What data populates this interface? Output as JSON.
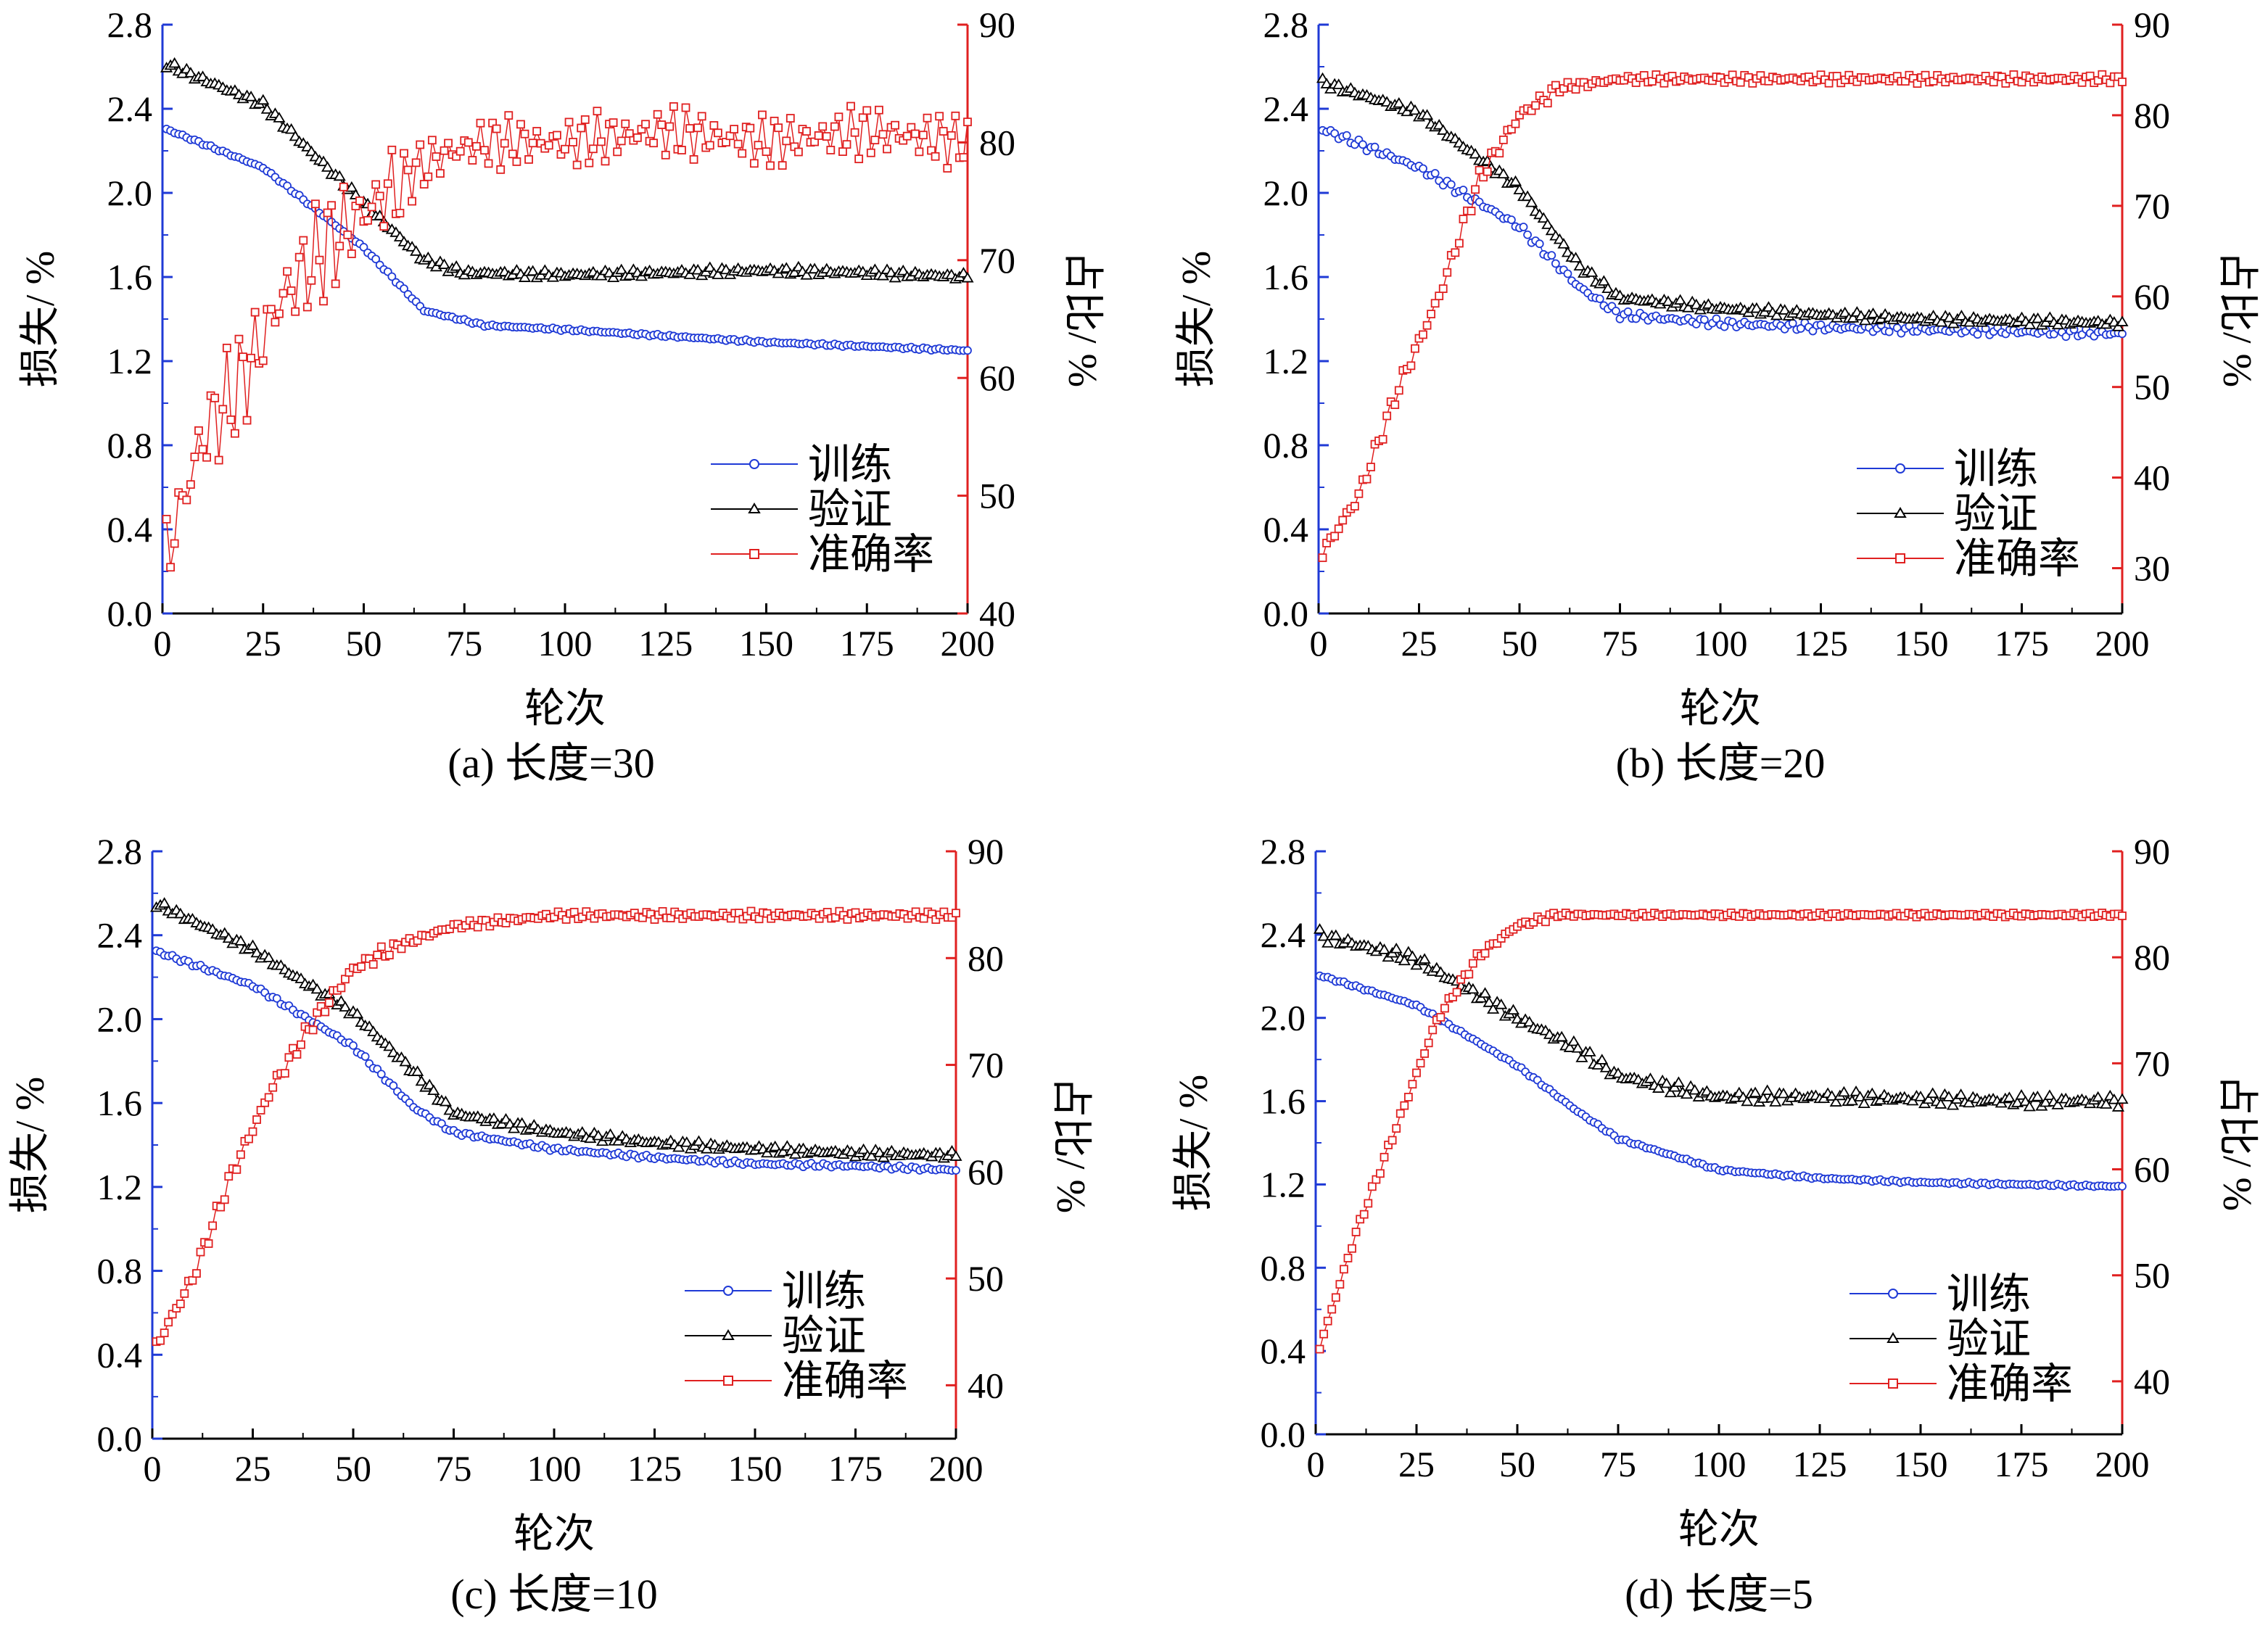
{
  "colors": {
    "train": "#1f3ad6",
    "val": "#000000",
    "acc": "#e02020",
    "left_axis": "#1f3ad6",
    "right_axis": "#e02020",
    "bottom_axis": "#000000"
  },
  "chart_data": [
    {
      "type": "line",
      "caption": "(a) 长度=30",
      "xlabel": "轮次",
      "ylabel_left": "损失/ %",
      "ylabel_right": "占比/ %",
      "xlim": [
        0,
        200
      ],
      "ylim_left": [
        0,
        2.8
      ],
      "ylim_right": [
        40,
        90
      ],
      "xticks": [
        "0",
        "25",
        "50",
        "75",
        "100",
        "125",
        "150",
        "175",
        "200"
      ],
      "yticks_left": [
        "0.0",
        "0.4",
        "0.8",
        "1.2",
        "1.6",
        "2.0",
        "2.4",
        "2.8"
      ],
      "yticks_right": [
        "40",
        "50",
        "60",
        "70",
        "80",
        "90"
      ],
      "legend": [
        "训练",
        "验证",
        "准确率"
      ],
      "series": [
        {
          "name": "训练",
          "axis": "left",
          "points": [
            [
              0,
              2.31
            ],
            [
              25,
              2.12
            ],
            [
              50,
              1.74
            ],
            [
              65,
              1.44
            ],
            [
              80,
              1.37
            ],
            [
              100,
              1.35
            ],
            [
              125,
              1.32
            ],
            [
              150,
              1.29
            ],
            [
              175,
              1.27
            ],
            [
              200,
              1.25
            ]
          ]
        },
        {
          "name": "验证",
          "axis": "left",
          "points": [
            [
              0,
              2.62
            ],
            [
              25,
              2.42
            ],
            [
              50,
              1.95
            ],
            [
              65,
              1.68
            ],
            [
              75,
              1.62
            ],
            [
              100,
              1.61
            ],
            [
              125,
              1.62
            ],
            [
              150,
              1.63
            ],
            [
              175,
              1.62
            ],
            [
              200,
              1.6
            ]
          ]
        },
        {
          "name": "准确率",
          "axis": "right",
          "points": [
            [
              0,
              44
            ],
            [
              10,
              55
            ],
            [
              20,
              60
            ],
            [
              30,
              67
            ],
            [
              40,
              71
            ],
            [
              50,
              74
            ],
            [
              60,
              77
            ],
            [
              70,
              79
            ],
            [
              80,
              80
            ],
            [
              100,
              80
            ],
            [
              125,
              81
            ],
            [
              150,
              80
            ],
            [
              175,
              81
            ],
            [
              200,
              80
            ]
          ]
        }
      ]
    },
    {
      "type": "line",
      "caption": "(b) 长度=20",
      "xlabel": "轮次",
      "ylabel_left": "损失/ %",
      "ylabel_right": "占比/ %",
      "xlim": [
        0,
        200
      ],
      "ylim_left": [
        0,
        2.8
      ],
      "ylim_right": [
        25,
        90
      ],
      "xticks": [
        "0",
        "25",
        "50",
        "75",
        "100",
        "125",
        "150",
        "175",
        "200"
      ],
      "yticks_left": [
        "0.0",
        "0.4",
        "0.8",
        "1.2",
        "1.6",
        "2.0",
        "2.4",
        "2.8"
      ],
      "yticks_right": [
        "30",
        "40",
        "50",
        "60",
        "70",
        "80",
        "90"
      ],
      "legend": [
        "训练",
        "验证",
        "准确率"
      ],
      "series": [
        {
          "name": "训练",
          "axis": "left",
          "points": [
            [
              0,
              2.31
            ],
            [
              25,
              2.12
            ],
            [
              50,
              1.84
            ],
            [
              65,
              1.55
            ],
            [
              75,
              1.42
            ],
            [
              100,
              1.38
            ],
            [
              125,
              1.36
            ],
            [
              150,
              1.35
            ],
            [
              175,
              1.34
            ],
            [
              200,
              1.33
            ]
          ]
        },
        {
          "name": "验证",
          "axis": "left",
          "points": [
            [
              0,
              2.53
            ],
            [
              25,
              2.38
            ],
            [
              50,
              2.02
            ],
            [
              65,
              1.65
            ],
            [
              75,
              1.5
            ],
            [
              100,
              1.45
            ],
            [
              125,
              1.42
            ],
            [
              150,
              1.4
            ],
            [
              175,
              1.39
            ],
            [
              200,
              1.38
            ]
          ]
        },
        {
          "name": "准确率",
          "axis": "right",
          "points": [
            [
              0,
              31
            ],
            [
              10,
              38
            ],
            [
              20,
              50
            ],
            [
              30,
              60
            ],
            [
              40,
              73
            ],
            [
              50,
              80
            ],
            [
              60,
              83
            ],
            [
              75,
              84
            ],
            [
              100,
              84
            ],
            [
              125,
              84
            ],
            [
              150,
              84
            ],
            [
              175,
              84
            ],
            [
              200,
              84
            ]
          ]
        }
      ]
    },
    {
      "type": "line",
      "caption": "(c) 长度=10",
      "xlabel": "轮次",
      "ylabel_left": "损失/ %",
      "ylabel_right": "占比/ %",
      "xlim": [
        0,
        200
      ],
      "ylim_left": [
        0,
        2.8
      ],
      "ylim_right": [
        35,
        90
      ],
      "xticks": [
        "0",
        "25",
        "50",
        "75",
        "100",
        "125",
        "150",
        "175",
        "200"
      ],
      "yticks_left": [
        "0.0",
        "0.4",
        "0.8",
        "1.2",
        "1.6",
        "2.0",
        "2.4",
        "2.8"
      ],
      "yticks_right": [
        "40",
        "50",
        "60",
        "70",
        "80",
        "90"
      ],
      "legend": [
        "训练",
        "验证",
        "准确率"
      ],
      "series": [
        {
          "name": "训练",
          "axis": "left",
          "points": [
            [
              0,
              2.33
            ],
            [
              25,
              2.16
            ],
            [
              50,
              1.87
            ],
            [
              65,
              1.58
            ],
            [
              75,
              1.46
            ],
            [
              100,
              1.38
            ],
            [
              125,
              1.34
            ],
            [
              150,
              1.31
            ],
            [
              175,
              1.3
            ],
            [
              200,
              1.28
            ]
          ]
        },
        {
          "name": "验证",
          "axis": "left",
          "points": [
            [
              0,
              2.56
            ],
            [
              25,
              2.33
            ],
            [
              50,
              2.03
            ],
            [
              65,
              1.75
            ],
            [
              75,
              1.55
            ],
            [
              100,
              1.46
            ],
            [
              125,
              1.41
            ],
            [
              150,
              1.38
            ],
            [
              175,
              1.36
            ],
            [
              200,
              1.35
            ]
          ]
        },
        {
          "name": "准确率",
          "axis": "right",
          "points": [
            [
              0,
              43
            ],
            [
              10,
              50
            ],
            [
              20,
              60
            ],
            [
              30,
              68
            ],
            [
              40,
              74
            ],
            [
              50,
              79
            ],
            [
              60,
              81
            ],
            [
              75,
              83
            ],
            [
              100,
              84
            ],
            [
              125,
              84
            ],
            [
              150,
              84
            ],
            [
              175,
              84
            ],
            [
              200,
              84
            ]
          ]
        }
      ]
    },
    {
      "type": "line",
      "caption": "(d) 长度=5",
      "xlabel": "轮次",
      "ylabel_left": "损失/ %",
      "ylabel_right": "占比/ %",
      "xlim": [
        0,
        200
      ],
      "ylim_left": [
        0,
        2.8
      ],
      "ylim_right": [
        35,
        90
      ],
      "xticks": [
        "0",
        "25",
        "50",
        "75",
        "100",
        "125",
        "150",
        "175",
        "200"
      ],
      "yticks_left": [
        "0.0",
        "0.4",
        "0.8",
        "1.2",
        "1.6",
        "2.0",
        "2.4",
        "2.8"
      ],
      "yticks_right": [
        "40",
        "50",
        "60",
        "70",
        "80",
        "90"
      ],
      "legend": [
        "训练",
        "验证",
        "准确率"
      ],
      "series": [
        {
          "name": "训练",
          "axis": "left",
          "points": [
            [
              0,
              2.21
            ],
            [
              25,
              2.06
            ],
            [
              50,
              1.77
            ],
            [
              65,
              1.55
            ],
            [
              75,
              1.42
            ],
            [
              100,
              1.27
            ],
            [
              125,
              1.23
            ],
            [
              150,
              1.21
            ],
            [
              175,
              1.2
            ],
            [
              200,
              1.19
            ]
          ]
        },
        {
          "name": "验证",
          "axis": "left",
          "points": [
            [
              0,
              2.4
            ],
            [
              25,
              2.28
            ],
            [
              50,
              2.0
            ],
            [
              65,
              1.85
            ],
            [
              75,
              1.72
            ],
            [
              100,
              1.62
            ],
            [
              125,
              1.62
            ],
            [
              150,
              1.61
            ],
            [
              175,
              1.6
            ],
            [
              200,
              1.6
            ]
          ]
        },
        {
          "name": "准确率",
          "axis": "right",
          "points": [
            [
              0,
              42
            ],
            [
              10,
              54
            ],
            [
              20,
              64
            ],
            [
              30,
              74
            ],
            [
              40,
              80
            ],
            [
              50,
              83
            ],
            [
              60,
              84
            ],
            [
              75,
              84
            ],
            [
              100,
              84
            ],
            [
              125,
              84
            ],
            [
              150,
              84
            ],
            [
              175,
              84
            ],
            [
              200,
              84
            ]
          ]
        }
      ]
    }
  ]
}
